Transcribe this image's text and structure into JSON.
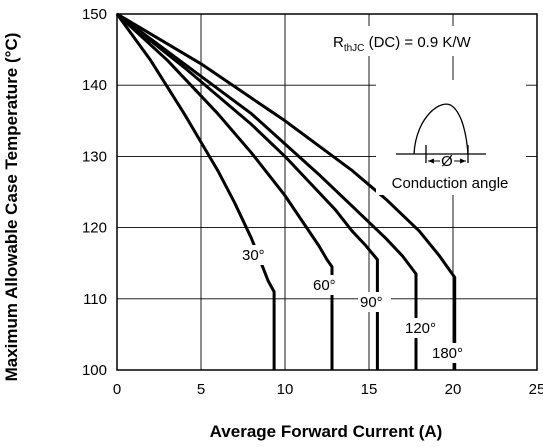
{
  "chart_data": {
    "type": "line",
    "xlabel": "Average Forward Current (A)",
    "ylabel": "Maximum Allowable Case Temperature (°C)",
    "xlim": [
      0,
      25
    ],
    "ylim": [
      100,
      150
    ],
    "xticks": [
      0,
      5,
      10,
      15,
      20,
      25
    ],
    "yticks": [
      100,
      110,
      120,
      130,
      140,
      150
    ],
    "grid": true,
    "series": [
      {
        "name": "30°",
        "x": [
          0,
          2,
          4,
          6,
          7,
          8,
          8.5,
          9.0,
          9.35,
          9.35
        ],
        "y": [
          150,
          143.5,
          136,
          128,
          123.5,
          118.5,
          115.5,
          112.5,
          111,
          100
        ]
      },
      {
        "name": "60°",
        "x": [
          0,
          3,
          6,
          8,
          10,
          11,
          12,
          12.5,
          12.8,
          12.8
        ],
        "y": [
          150,
          143.5,
          136,
          130.5,
          124.5,
          121,
          117.5,
          115.5,
          114.5,
          100
        ]
      },
      {
        "name": "90°",
        "x": [
          0,
          4,
          8,
          10,
          12,
          13,
          14,
          14.8,
          15.5,
          15.5
        ],
        "y": [
          150,
          142.5,
          134.5,
          130,
          125,
          122.5,
          119.5,
          117.5,
          115.5,
          100
        ]
      },
      {
        "name": "120°",
        "x": [
          0,
          4,
          8,
          12,
          14,
          16,
          17,
          17.8,
          17.8
        ],
        "y": [
          150,
          143,
          136,
          127.5,
          123,
          118.5,
          116,
          113.5,
          100
        ]
      },
      {
        "name": "180°",
        "x": [
          0,
          5,
          10,
          14,
          16,
          18,
          19.2,
          20.1,
          20.1
        ],
        "y": [
          150,
          143,
          135,
          128,
          124,
          119.5,
          116,
          113,
          100
        ]
      }
    ],
    "curve_labels": [
      "30°",
      "60°",
      "90°",
      "120°",
      "180°"
    ],
    "annotations": {
      "rthjc_main": "R",
      "rthjc_sub": "thJC",
      "rthjc_rest": " (DC) = 0.9 K/W",
      "phi": "Ø",
      "conduction": "Conduction angle"
    }
  }
}
